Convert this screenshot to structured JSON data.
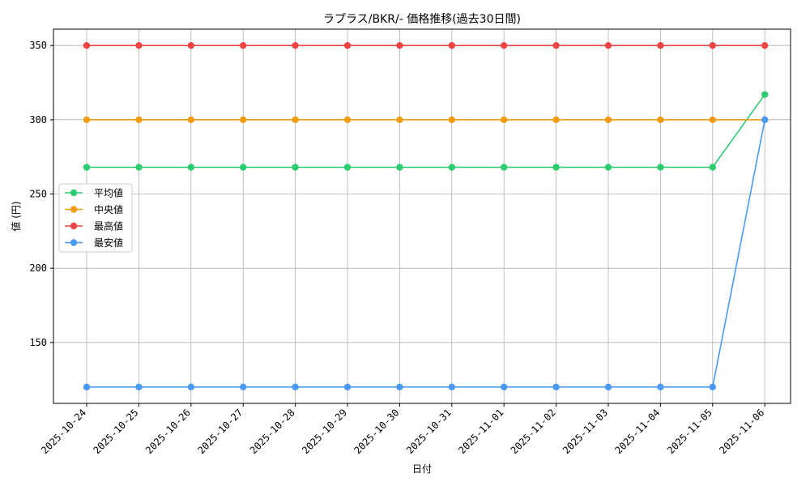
{
  "chart_data": {
    "type": "line",
    "title": "ラプラス/BKR/- 価格推移(過去30日間)",
    "xlabel": "日付",
    "ylabel": "値 (円)",
    "x": [
      "2025-10-24",
      "2025-10-25",
      "2025-10-26",
      "2025-10-27",
      "2025-10-28",
      "2025-10-29",
      "2025-10-30",
      "2025-10-31",
      "2025-11-01",
      "2025-11-02",
      "2025-11-03",
      "2025-11-04",
      "2025-11-05",
      "2025-11-06"
    ],
    "ylim": [
      109,
      361
    ],
    "yticks": [
      150,
      200,
      250,
      300,
      350
    ],
    "grid": true,
    "legend_position": "center-left",
    "series": [
      {
        "name": "平均値",
        "color": "#2ecc71",
        "values": [
          268,
          268,
          268,
          268,
          268,
          268,
          268,
          268,
          268,
          268,
          268,
          268,
          268,
          317
        ]
      },
      {
        "name": "中央値",
        "color": "#f39c12",
        "values": [
          300,
          300,
          300,
          300,
          300,
          300,
          300,
          300,
          300,
          300,
          300,
          300,
          300,
          300
        ]
      },
      {
        "name": "最高値",
        "color": "#ef4444",
        "values": [
          350,
          350,
          350,
          350,
          350,
          350,
          350,
          350,
          350,
          350,
          350,
          350,
          350,
          350
        ]
      },
      {
        "name": "最安値",
        "color": "#4a9af5",
        "values": [
          120,
          120,
          120,
          120,
          120,
          120,
          120,
          120,
          120,
          120,
          120,
          120,
          120,
          300
        ]
      }
    ]
  }
}
